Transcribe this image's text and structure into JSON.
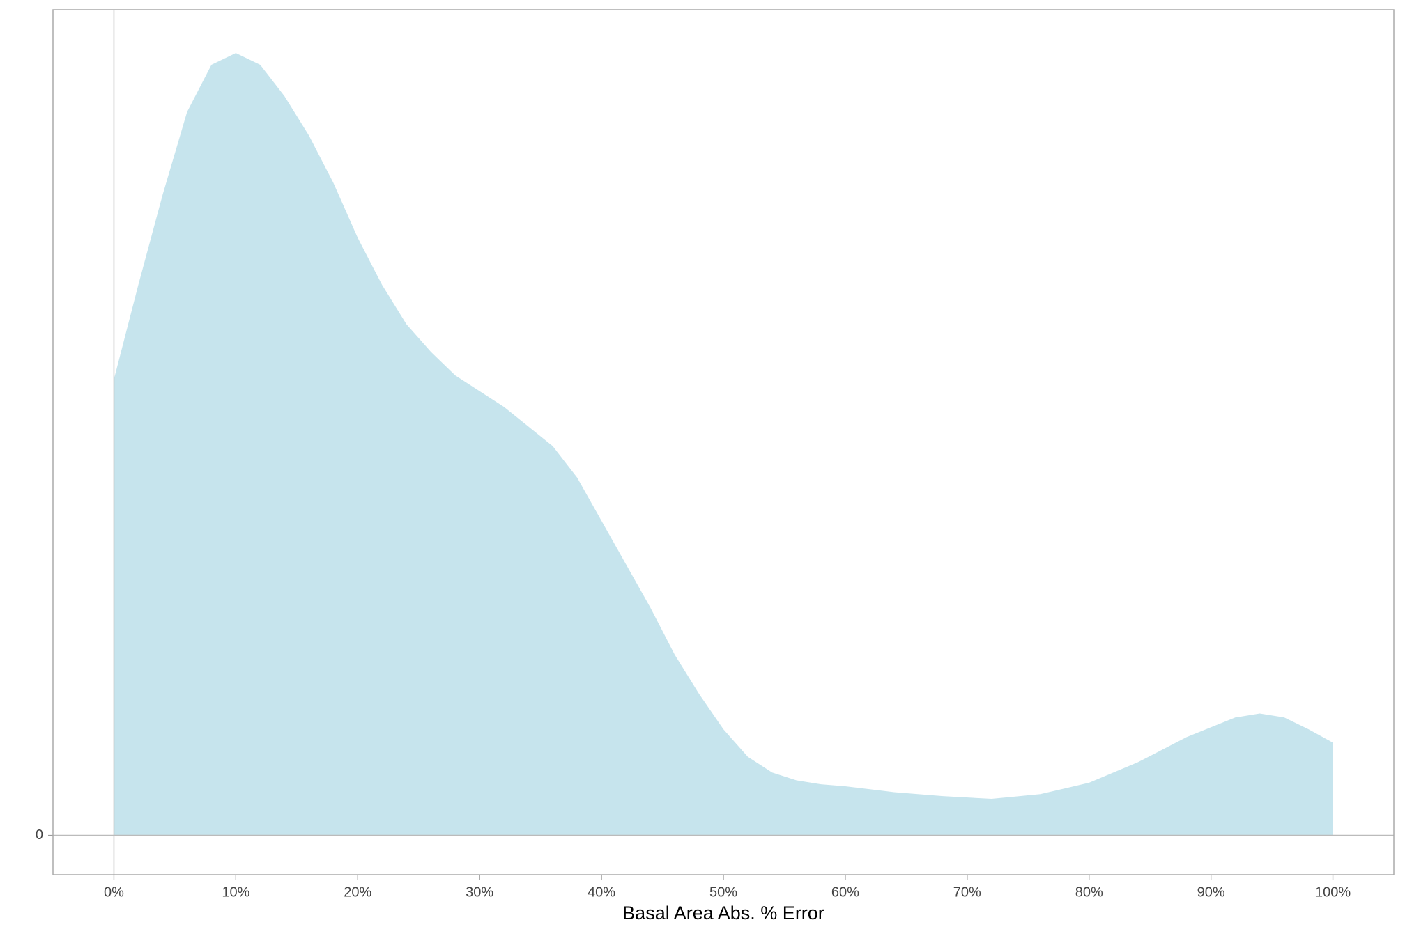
{
  "chart_data": {
    "type": "area",
    "x_label": "Basal Area Abs. % Error",
    "x": [
      0,
      2,
      4,
      6,
      8,
      10,
      12,
      14,
      16,
      18,
      20,
      22,
      24,
      26,
      28,
      30,
      32,
      34,
      36,
      38,
      40,
      42,
      44,
      46,
      48,
      50,
      52,
      54,
      56,
      58,
      60,
      64,
      68,
      72,
      76,
      80,
      84,
      88,
      92,
      94,
      96,
      98,
      100
    ],
    "values": [
      1.16,
      1.4,
      1.63,
      1.84,
      1.96,
      1.99,
      1.96,
      1.88,
      1.78,
      1.66,
      1.52,
      1.4,
      1.3,
      1.23,
      1.17,
      1.13,
      1.09,
      1.04,
      0.99,
      0.91,
      0.8,
      0.69,
      0.58,
      0.46,
      0.36,
      0.27,
      0.2,
      0.16,
      0.14,
      0.13,
      0.125,
      0.11,
      0.1,
      0.093,
      0.105,
      0.134,
      0.186,
      0.25,
      0.3,
      0.31,
      0.3,
      0.27,
      0.236
    ],
    "color": "#c6e4ed",
    "xlim": [
      -5,
      105
    ],
    "xticks": [
      {
        "value": 0,
        "label": "0%"
      },
      {
        "value": 10,
        "label": "10%"
      },
      {
        "value": 20,
        "label": "20%"
      },
      {
        "value": 30,
        "label": "30%"
      },
      {
        "value": 40,
        "label": "40%"
      },
      {
        "value": 50,
        "label": "50%"
      },
      {
        "value": 60,
        "label": "60%"
      },
      {
        "value": 70,
        "label": "70%"
      },
      {
        "value": 80,
        "label": "80%"
      },
      {
        "value": 90,
        "label": "90%"
      },
      {
        "value": 100,
        "label": "100%"
      }
    ],
    "ylim": [
      -0.1,
      2.1
    ],
    "yticks": [
      0
    ]
  }
}
